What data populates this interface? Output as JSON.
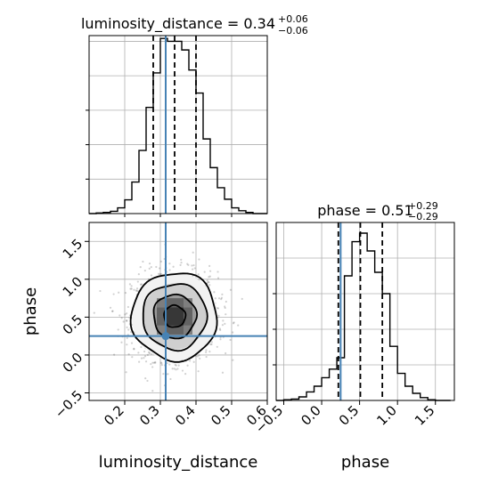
{
  "chart_data": [
    {
      "type": "histogram",
      "panel": "luminosity_distance-marginal",
      "title": {
        "param": "luminosity_distance",
        "value": "0.34",
        "plus": "+0.06",
        "minus": "−0.06"
      },
      "xlim": [
        0.1,
        0.6
      ],
      "bin_edges": [
        0.1,
        0.12,
        0.14,
        0.16,
        0.18,
        0.2,
        0.22,
        0.24,
        0.26,
        0.28,
        0.3,
        0.32,
        0.34,
        0.36,
        0.38,
        0.4,
        0.42,
        0.44,
        0.46,
        0.48,
        0.5,
        0.52,
        0.54,
        0.56,
        0.58,
        0.6
      ],
      "counts": [
        0,
        1,
        2,
        4,
        10,
        24,
        55,
        110,
        185,
        245,
        305,
        300,
        300,
        285,
        250,
        210,
        130,
        80,
        45,
        25,
        10,
        5,
        2,
        0,
        0
      ],
      "ylim": [
        0,
        310
      ],
      "quantiles": [
        0.28,
        0.34,
        0.4
      ],
      "truth": 0.315,
      "grid": true
    },
    {
      "type": "histogram",
      "panel": "phase-marginal",
      "title": {
        "param": "phase",
        "value": "0.51",
        "plus": "+0.29",
        "minus": "−0.29"
      },
      "xlim": [
        -0.6,
        1.75
      ],
      "bin_edges": [
        -0.6,
        -0.5,
        -0.4,
        -0.3,
        -0.2,
        -0.1,
        0.0,
        0.1,
        0.2,
        0.3,
        0.4,
        0.5,
        0.6,
        0.7,
        0.8,
        0.9,
        1.0,
        1.1,
        1.2,
        1.3,
        1.4,
        1.5,
        1.6,
        1.7
      ],
      "counts": [
        0,
        1,
        2,
        5,
        12,
        20,
        32,
        44,
        60,
        175,
        223,
        235,
        210,
        180,
        150,
        76,
        38,
        20,
        10,
        4,
        1,
        0,
        0
      ],
      "ylim": [
        0,
        250
      ],
      "quantiles": [
        0.22,
        0.51,
        0.8
      ],
      "truth": 0.25,
      "grid": true
    },
    {
      "type": "heatmap",
      "panel": "luminosity_distance-vs-phase",
      "xlabel": "luminosity_distance",
      "ylabel": "phase",
      "xlim": [
        0.1,
        0.6
      ],
      "ylim": [
        -0.6,
        1.75
      ],
      "x_ticks": [
        "0.2",
        "0.3",
        "0.4",
        "0.5",
        "0.6"
      ],
      "y_ticks": [
        "−0.5",
        "0.0",
        "0.5",
        "1.0",
        "1.5"
      ],
      "center": [
        0.34,
        0.51
      ],
      "sigma": [
        0.06,
        0.29
      ],
      "contour_levels_sigma": [
        0.5,
        1.0,
        1.5,
        2.0
      ],
      "truth": [
        0.315,
        0.25
      ],
      "grid": true
    },
    {
      "type": "histogram",
      "panel": "phase-axis",
      "xlabel": "phase",
      "x_ticks": [
        "−0.5",
        "0.0",
        "0.5",
        "1.0",
        "1.5"
      ]
    }
  ],
  "colors": {
    "truth": "#4682b4",
    "hist": "#000000",
    "grid": "#b0b0b0"
  }
}
